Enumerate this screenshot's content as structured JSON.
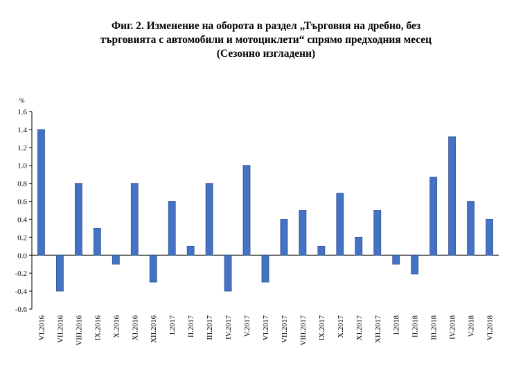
{
  "chart_data": {
    "type": "bar",
    "title_lines": [
      "Фиг. 2. Изменение на оборота в раздел „Търговия на дребно, без",
      "търговията с автомобили и мотоциклети“ спрямо предходния месец",
      "(Сезонно изгладени)"
    ],
    "ylabel": "%",
    "ylim": [
      -0.6,
      1.6
    ],
    "yticks": [
      "1.6",
      "1.4",
      "1.2",
      "1.0",
      "0.8",
      "0.6",
      "0.4",
      "0.2",
      "0.0",
      "-0.2",
      "-0.4",
      "-0.6"
    ],
    "ytick_values": [
      1.6,
      1.4,
      1.2,
      1.0,
      0.8,
      0.6,
      0.4,
      0.2,
      0.0,
      -0.2,
      -0.4,
      -0.6
    ],
    "categories": [
      "VI.2016",
      "VII.2016",
      "VIII.2016",
      "IX.2016",
      "X.2016",
      "XI.2016",
      "XII.2016",
      "I.2017",
      "II.2017",
      "III.2017",
      "IV.2017",
      "V.2017",
      "VI.2017",
      "VII.2017",
      "VIII.2017",
      "IX.2017",
      "X.2017",
      "XI.2017",
      "XII.2017",
      "I.2018",
      "II.2018",
      "III.2018",
      "IV.2018",
      "V.2018",
      "VI.2018"
    ],
    "values": [
      1.4,
      -0.4,
      0.8,
      0.3,
      -0.1,
      0.8,
      -0.3,
      0.6,
      0.1,
      0.8,
      -0.4,
      1.0,
      -0.3,
      0.4,
      0.5,
      0.1,
      0.69,
      0.2,
      0.5,
      -0.1,
      -0.21,
      0.87,
      1.32,
      0.6,
      0.4
    ],
    "grid": false,
    "legend": "none",
    "colors": {
      "bar_fill": "#4472C4",
      "bar_stroke": "#2F528F",
      "axis": "#000000"
    }
  }
}
